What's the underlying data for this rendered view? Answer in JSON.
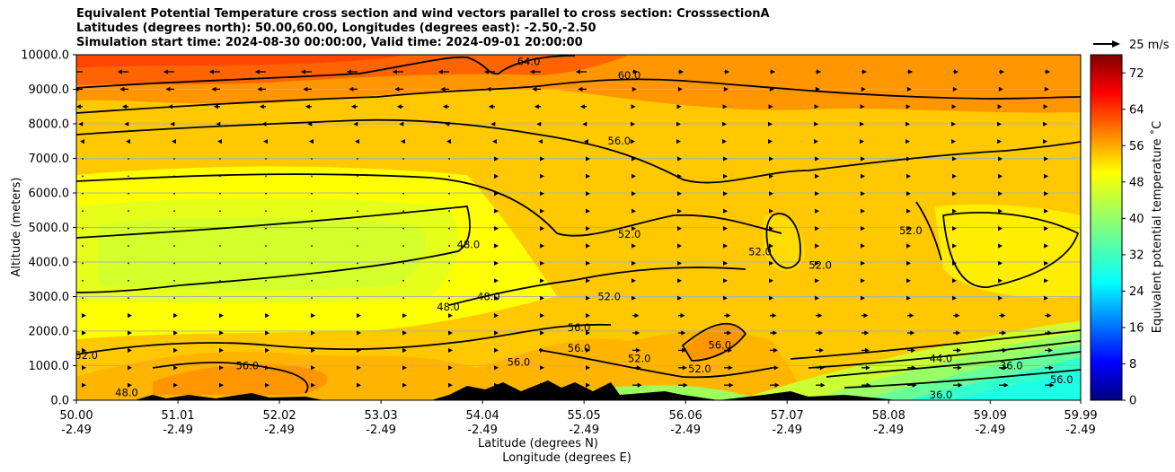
{
  "chart_data": {
    "type": "heatmap",
    "title_lines": [
      "Equivalent Potential Temperature cross section and wind vectors parallel to cross section: CrosssectionA",
      "Latitudes (degrees north): 50.00,60.00, Longitudes (degrees east): -2.50,-2.50",
      "Simulation start time: 2024-08-30 00:00:00, Valid time: 2024-09-01 20:00:00"
    ],
    "ylabel": "Altitude (meters)",
    "xlabel_1": "Latitude (degrees N)",
    "xlabel_2": "Longitude (degrees E)",
    "ylim": [
      0,
      10000
    ],
    "xlim": [
      50.0,
      59.99
    ],
    "y_ticks": [
      "0.0",
      "1000.0",
      "2000.0",
      "3000.0",
      "4000.0",
      "5000.0",
      "6000.0",
      "7000.0",
      "8000.0",
      "9000.0",
      "10000.0"
    ],
    "y_tick_values": [
      0,
      1000,
      2000,
      3000,
      4000,
      5000,
      6000,
      7000,
      8000,
      9000,
      10000
    ],
    "x_tick_values": [
      50.0,
      51.01,
      52.02,
      53.03,
      54.04,
      55.05,
      56.06,
      57.07,
      58.08,
      59.09,
      59.99
    ],
    "x_ticks_lat": [
      "50.00",
      "51.01",
      "52.02",
      "53.03",
      "54.04",
      "55.05",
      "56.06",
      "57.07",
      "58.08",
      "59.09",
      "59.99"
    ],
    "x_ticks_lon": [
      "-2.49",
      "-2.49",
      "-2.49",
      "-2.49",
      "-2.49",
      "-2.49",
      "-2.49",
      "-2.49",
      "-2.49",
      "-2.49",
      "-2.49"
    ],
    "grid": "horizontal",
    "colorbar": {
      "label": "Equivalent potential temperature ˚C",
      "range": [
        0,
        76
      ],
      "ticks": [
        "0",
        "8",
        "16",
        "24",
        "32",
        "40",
        "48",
        "56",
        "64",
        "72"
      ],
      "tick_values": [
        0,
        8,
        16,
        24,
        32,
        40,
        48,
        56,
        64,
        72
      ]
    },
    "quiver_key": "25 m/s",
    "contour_labels": [
      {
        "text": "64.0",
        "lat": 54.5,
        "alt": 9700
      },
      {
        "text": "60.0",
        "lat": 55.5,
        "alt": 9300
      },
      {
        "text": "56.0",
        "lat": 55.4,
        "alt": 7400
      },
      {
        "text": "52.0",
        "lat": 55.5,
        "alt": 4700
      },
      {
        "text": "48.0",
        "lat": 53.9,
        "alt": 4400
      },
      {
        "text": "48.0",
        "lat": 53.7,
        "alt": 2600
      },
      {
        "text": "48.0",
        "lat": 54.1,
        "alt": 2900
      },
      {
        "text": "52.0",
        "lat": 55.3,
        "alt": 2900
      },
      {
        "text": "56.0",
        "lat": 55.0,
        "alt": 2000
      },
      {
        "text": "56.0",
        "lat": 55.0,
        "alt": 1400
      },
      {
        "text": "52.0",
        "lat": 55.6,
        "alt": 1100
      },
      {
        "text": "52.0",
        "lat": 56.2,
        "alt": 800
      },
      {
        "text": "56.0",
        "lat": 56.4,
        "alt": 1500
      },
      {
        "text": "52.0",
        "lat": 56.8,
        "alt": 4200
      },
      {
        "text": "52.0",
        "lat": 57.4,
        "alt": 3800
      },
      {
        "text": "52.0",
        "lat": 58.3,
        "alt": 4800
      },
      {
        "text": "44.0",
        "lat": 58.6,
        "alt": 1100
      },
      {
        "text": "36.0",
        "lat": 59.3,
        "alt": 900
      },
      {
        "text": "36.0",
        "lat": 58.6,
        "alt": 50
      },
      {
        "text": "52.0",
        "lat": 50.1,
        "alt": 1200
      },
      {
        "text": "48.0",
        "lat": 50.5,
        "alt": 120
      },
      {
        "text": "56.0",
        "lat": 51.7,
        "alt": 900
      },
      {
        "text": "56.0",
        "lat": 54.4,
        "alt": 1000
      },
      {
        "text": "56.0",
        "lat": 59.8,
        "alt": 500
      }
    ]
  }
}
